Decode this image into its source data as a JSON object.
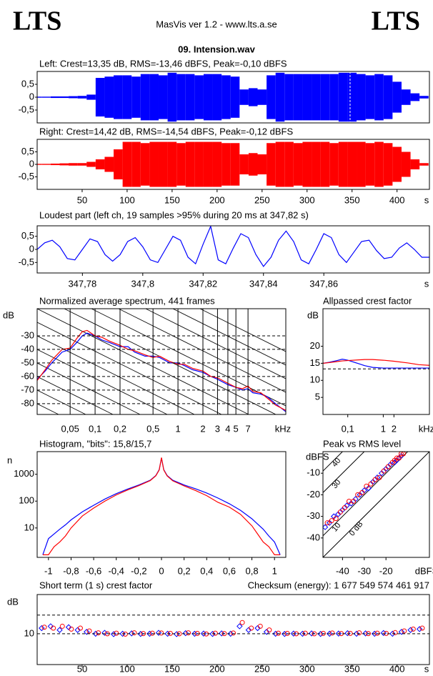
{
  "header": {
    "logo_left": "LTS",
    "logo_right": "LTS",
    "app": "MasVis ver 1.2 - www.lts.a.se",
    "file": "09. Intension.wav"
  },
  "chart_data": [
    {
      "type": "waveform",
      "title": "Left: Crest=13,35 dB, RMS=-13,46 dBFS, Peak=-0,10 dBFS",
      "color": "#0000ff",
      "x": [
        0,
        10,
        20,
        30,
        40,
        50,
        60,
        70,
        80,
        90,
        100,
        110,
        120,
        130,
        140,
        150,
        160,
        170,
        180,
        190,
        200,
        210,
        220,
        230,
        240,
        250,
        260,
        270,
        280,
        290,
        300,
        310,
        320,
        330,
        340,
        350,
        360,
        370,
        380,
        390,
        400,
        410,
        420,
        430
      ],
      "values": [
        0.02,
        0.02,
        0.03,
        0.03,
        0.04,
        0.05,
        0.1,
        0.75,
        0.8,
        0.85,
        0.85,
        0.8,
        0.9,
        0.9,
        0.85,
        0.95,
        0.9,
        0.9,
        0.85,
        0.9,
        0.9,
        0.85,
        0.8,
        0.3,
        0.35,
        0.3,
        0.85,
        0.95,
        0.9,
        0.9,
        0.9,
        0.9,
        0.9,
        0.9,
        0.95,
        0.95,
        0.9,
        0.85,
        0.9,
        0.85,
        0.6,
        0.3,
        0.15,
        0.05
      ],
      "marker_x": 347.82,
      "xlim": [
        0,
        436
      ],
      "ylim": [
        -1,
        1
      ],
      "yticks": [
        {
          "value": 0.5,
          "label": "0,5"
        },
        0,
        {
          "value": -0.5,
          "label": "-0,5"
        }
      ]
    },
    {
      "type": "waveform",
      "title": "Right: Crest=14,42 dB, RMS=-14,54 dBFS, Peak=-0,12 dBFS",
      "color": "#ff0000",
      "x": [
        0,
        10,
        20,
        30,
        40,
        50,
        60,
        70,
        80,
        90,
        100,
        110,
        120,
        130,
        140,
        150,
        160,
        170,
        180,
        190,
        200,
        210,
        220,
        230,
        240,
        250,
        260,
        270,
        280,
        290,
        300,
        310,
        320,
        330,
        340,
        350,
        360,
        370,
        380,
        390,
        400,
        410,
        420,
        430
      ],
      "values": [
        0.02,
        0.02,
        0.03,
        0.04,
        0.05,
        0.05,
        0.1,
        0.2,
        0.3,
        0.6,
        0.9,
        0.9,
        0.85,
        0.9,
        0.9,
        0.9,
        0.85,
        0.9,
        0.9,
        0.9,
        0.9,
        0.85,
        0.85,
        0.4,
        0.45,
        0.4,
        0.85,
        0.9,
        0.9,
        0.85,
        0.9,
        0.9,
        0.9,
        0.85,
        0.9,
        0.9,
        0.9,
        0.85,
        0.9,
        0.85,
        0.7,
        0.5,
        0.2,
        0.05
      ],
      "xlim": [
        0,
        436
      ],
      "ylim": [
        -1,
        1
      ],
      "yticks": [
        {
          "value": 0.5,
          "label": "0,5"
        },
        0,
        {
          "value": -0.5,
          "label": "-0,5"
        }
      ],
      "xticks": [
        50,
        100,
        150,
        200,
        250,
        300,
        350,
        400
      ],
      "xlabel": "s"
    },
    {
      "type": "line",
      "title": "Loudest part (left  ch, 19 samples >95% during 20 ms at 347,82 s)",
      "x": [
        347.765,
        347.7675,
        347.77,
        347.7725,
        347.775,
        347.7775,
        347.78,
        347.7825,
        347.785,
        347.7875,
        347.79,
        347.7925,
        347.795,
        347.7975,
        347.8,
        347.8025,
        347.805,
        347.8075,
        347.81,
        347.8125,
        347.815,
        347.8175,
        347.82,
        347.8225,
        347.825,
        347.8275,
        347.83,
        347.8325,
        347.835,
        347.8375,
        347.84,
        347.8425,
        347.845,
        347.8475,
        347.85,
        347.8525,
        347.855,
        347.8575,
        347.86,
        347.8625,
        347.865,
        347.8675,
        347.87,
        347.8725,
        347.875,
        347.8775,
        347.88,
        347.8825,
        347.885,
        347.8875,
        347.89,
        347.8925,
        347.895
      ],
      "series": [
        {
          "color": "#0000ff",
          "values": [
            0,
            0.25,
            0.35,
            0.1,
            -0.35,
            -0.4,
            0,
            0.4,
            0.3,
            -0.2,
            -0.45,
            -0.2,
            0.3,
            0.45,
            0.1,
            -0.4,
            -0.5,
            0,
            0.5,
            0.35,
            -0.3,
            -0.55,
            0.2,
            0.88,
            -0.4,
            -0.55,
            0.05,
            0.6,
            0.45,
            -0.2,
            -0.65,
            -0.3,
            0.35,
            0.7,
            0.3,
            -0.4,
            -0.55,
            0,
            0.6,
            0.45,
            -0.2,
            -0.5,
            -0.1,
            0.3,
            0.35,
            -0.05,
            -0.35,
            -0.3,
            0.05,
            0.25,
            0,
            -0.3,
            -0.3
          ]
        }
      ],
      "xlim": [
        347.765,
        347.895
      ],
      "ylim": [
        -0.9,
        0.9
      ],
      "yticks": [
        {
          "value": 0.5,
          "label": "0,5"
        },
        0,
        {
          "value": -0.5,
          "label": "-0,5"
        }
      ],
      "xticks": [
        {
          "value": 347.78,
          "label": "347,78"
        },
        {
          "value": 347.8,
          "label": "347,8"
        },
        {
          "value": 347.82,
          "label": "347,82"
        },
        {
          "value": 347.84,
          "label": "347,84"
        },
        {
          "value": 347.86,
          "label": "347,86"
        }
      ],
      "xlabel": "s"
    },
    {
      "type": "line",
      "title": "Normalized average spectrum, 441 frames",
      "ylabel": "dB",
      "xlabel": "kHz",
      "log_x": true,
      "grid": true,
      "slope_lines": true,
      "x": [
        0.02,
        0.025,
        0.03,
        0.04,
        0.05,
        0.06,
        0.07,
        0.08,
        0.1,
        0.12,
        0.15,
        0.2,
        0.25,
        0.3,
        0.4,
        0.5,
        0.6,
        0.8,
        1,
        1.2,
        1.5,
        2,
        2.5,
        3,
        4,
        5,
        6,
        7,
        8,
        10,
        12,
        15,
        20
      ],
      "series": [
        {
          "color": "#0000ff",
          "values": [
            -62,
            -56,
            -50,
            -42,
            -40,
            -35,
            -30,
            -28,
            -30,
            -33,
            -35,
            -38,
            -38,
            -42,
            -45,
            -45,
            -46,
            -50,
            -50,
            -52,
            -55,
            -57,
            -60,
            -62,
            -66,
            -68,
            -70,
            -69,
            -72,
            -73,
            -75,
            -80,
            -86
          ]
        },
        {
          "color": "#ff0000",
          "values": [
            -63,
            -55,
            -48,
            -40,
            -39,
            -32,
            -27,
            -26,
            -30,
            -31,
            -34,
            -37,
            -40,
            -41,
            -44,
            -46,
            -45,
            -49,
            -51,
            -51,
            -54,
            -56,
            -60,
            -61,
            -65,
            -68,
            -69,
            -67,
            -71,
            -72,
            -76,
            -81,
            -85
          ]
        }
      ],
      "xlim": [
        0.02,
        20
      ],
      "ylim": [
        -88,
        -10
      ],
      "yticks": [
        -30,
        -40,
        -50,
        -60,
        -70,
        -80
      ],
      "xticks": [
        {
          "value": 0.05,
          "label": "0,05"
        },
        {
          "value": 0.1,
          "label": "0,1"
        },
        {
          "value": 0.2,
          "label": "0,2"
        },
        {
          "value": 0.5,
          "label": "0,5"
        },
        1,
        2,
        3,
        4,
        5,
        7
      ]
    },
    {
      "type": "line",
      "title": "Allpassed crest factor",
      "ylabel": "dB",
      "xlabel": "kHz",
      "log_x": true,
      "reference": 13.35,
      "x": [
        0.02,
        0.03,
        0.05,
        0.07,
        0.1,
        0.2,
        0.3,
        0.5,
        1,
        2,
        5,
        10,
        20
      ],
      "series": [
        {
          "color": "#0000ff",
          "values": [
            15,
            15.3,
            15.8,
            16.2,
            15.9,
            14.9,
            14.3,
            13.8,
            13.6,
            13.6,
            13.6,
            13.6,
            13.6
          ]
        },
        {
          "color": "#ff0000",
          "values": [
            15,
            15.2,
            15.5,
            15.7,
            15.8,
            16,
            16.1,
            16.1,
            15.9,
            15.6,
            15.1,
            14.6,
            14.4
          ]
        }
      ],
      "xlim": [
        0.02,
        20
      ],
      "ylim": [
        0,
        31
      ],
      "yticks": [
        20,
        15,
        10,
        5
      ],
      "xticks": [
        {
          "value": 0.1,
          "label": "0,1"
        },
        1,
        2
      ]
    },
    {
      "type": "line",
      "title": "Histogram, \"bits\": 15,8/15,7",
      "ylabel": "n",
      "log_y": true,
      "x": [
        -1.05,
        -1,
        -0.95,
        -0.9,
        -0.85,
        -0.8,
        -0.7,
        -0.6,
        -0.5,
        -0.4,
        -0.3,
        -0.2,
        -0.1,
        -0.05,
        -0.02,
        0,
        0.02,
        0.05,
        0.1,
        0.2,
        0.3,
        0.4,
        0.5,
        0.6,
        0.7,
        0.8,
        0.85,
        0.9,
        0.95,
        1,
        1.05
      ],
      "series": [
        {
          "color": "#0000ff",
          "values": [
            1,
            4,
            6,
            9,
            13,
            20,
            40,
            70,
            120,
            190,
            280,
            400,
            600,
            900,
            1500,
            4000,
            1500,
            900,
            600,
            400,
            290,
            200,
            130,
            80,
            45,
            22,
            14,
            9,
            5,
            3,
            1
          ]
        },
        {
          "color": "#ff0000",
          "values": [
            1,
            1,
            2,
            3,
            5,
            10,
            28,
            55,
            100,
            170,
            260,
            380,
            580,
            880,
            1450,
            4200,
            1450,
            870,
            570,
            370,
            250,
            160,
            90,
            60,
            32,
            12,
            6,
            3,
            2,
            1,
            1
          ]
        }
      ],
      "xlim": [
        -1.1,
        1.1
      ],
      "ylim": [
        0.8,
        7000
      ],
      "yticks": [
        10,
        100,
        1000
      ],
      "xticks": [
        -1,
        {
          "value": -0.8,
          "label": "-0,8"
        },
        {
          "value": -0.6,
          "label": "-0,6"
        },
        {
          "value": -0.4,
          "label": "-0,4"
        },
        {
          "value": -0.2,
          "label": "-0,2"
        },
        0,
        {
          "value": 0.2,
          "label": "0,2"
        },
        {
          "value": 0.4,
          "label": "0,4"
        },
        {
          "value": 0.6,
          "label": "0,6"
        },
        {
          "value": 0.8,
          "label": "0,8"
        },
        1
      ]
    },
    {
      "type": "scatter",
      "title": "Peak vs RMS level",
      "ylabel": "dBFS",
      "xlabel": "dBFS",
      "crest_lines": [
        {
          "value": 0,
          "label": "0 dB"
        },
        10,
        30,
        40
      ],
      "series": [
        {
          "color": "#0000ff",
          "marker": "diamond",
          "x": [
            -48,
            -46,
            -44,
            -42,
            -40,
            -38,
            -36,
            -34,
            -32,
            -30,
            -28,
            -26,
            -24,
            -22,
            -20,
            -18,
            -16,
            -15,
            -14,
            -13
          ],
          "values": [
            -35,
            -33,
            -30,
            -29,
            -27,
            -25,
            -24,
            -22,
            -20,
            -18,
            -17,
            -14,
            -12,
            -10,
            -8,
            -6,
            -5,
            -4,
            -3,
            -2
          ]
        },
        {
          "color": "#ff0000",
          "marker": "circle",
          "x": [
            -47,
            -45,
            -43,
            -41,
            -39,
            -37,
            -35,
            -33,
            -31,
            -29,
            -27,
            -25,
            -23,
            -21,
            -19,
            -17,
            -16,
            -15,
            -14,
            -13,
            -12
          ],
          "values": [
            -33,
            -32,
            -31,
            -28,
            -26,
            -23,
            -23,
            -20,
            -19,
            -16,
            -15,
            -13,
            -12,
            -9,
            -7,
            -5,
            -4,
            -3,
            -3,
            -1,
            -1
          ]
        }
      ],
      "xlim": [
        -49,
        0
      ],
      "ylim": [
        -49,
        0
      ],
      "yticks": [
        -10,
        -20,
        -30,
        -40
      ],
      "xticks": [
        -40,
        -30,
        -20
      ]
    },
    {
      "type": "scatter",
      "title": "Short term (1 s) crest factor",
      "annotation": "Checksum (energy):  1 677 549 574 461 917",
      "ylabel": "dB",
      "xlabel": "s",
      "ygrid": true,
      "reference": 20,
      "series": [
        {
          "color": "#0000ff",
          "marker": "diamond",
          "x": [
            5,
            15,
            25,
            35,
            45,
            55,
            65,
            75,
            85,
            95,
            105,
            115,
            125,
            135,
            145,
            155,
            165,
            175,
            185,
            195,
            205,
            215,
            225,
            235,
            245,
            255,
            265,
            275,
            285,
            295,
            305,
            315,
            325,
            335,
            345,
            355,
            365,
            375,
            385,
            395,
            405,
            415,
            425
          ],
          "values": [
            13,
            14,
            12,
            13.5,
            12,
            11,
            10,
            10.5,
            9.8,
            10,
            10.2,
            9.9,
            10,
            10.5,
            10,
            9.8,
            10.3,
            10,
            10.1,
            9.9,
            10.2,
            10,
            14,
            12,
            13,
            11,
            10,
            9.9,
            10.1,
            10,
            10.2,
            9.9,
            10,
            10.1,
            10.3,
            10,
            10.2,
            10,
            10.4,
            10,
            11,
            12,
            12.5
          ]
        },
        {
          "color": "#ff0000",
          "marker": "circle",
          "x": [
            8,
            18,
            28,
            38,
            48,
            58,
            68,
            78,
            88,
            98,
            108,
            118,
            128,
            138,
            148,
            158,
            168,
            178,
            188,
            198,
            208,
            218,
            228,
            238,
            248,
            258,
            268,
            278,
            288,
            298,
            308,
            318,
            328,
            338,
            348,
            358,
            368,
            378,
            388,
            398,
            408,
            418,
            428
          ],
          "values": [
            13.5,
            13,
            14,
            12.5,
            13,
            11.5,
            10.5,
            10,
            10.3,
            9.8,
            10.5,
            10.1,
            10.3,
            10.4,
            10.2,
            10,
            10.5,
            10.2,
            9.9,
            10.3,
            10.1,
            10.4,
            16,
            13,
            14,
            12,
            10.3,
            10.2,
            10,
            10.3,
            10,
            10.2,
            10.4,
            10.1,
            10.2,
            10.5,
            10.1,
            10.3,
            10.2,
            10.6,
            11.5,
            12.5,
            13
          ]
        }
      ],
      "xlim": [
        0,
        436
      ],
      "ylim": [
        -6.5,
        31
      ],
      "yticks": [
        10
      ],
      "xticks": [
        50,
        100,
        150,
        200,
        250,
        300,
        350,
        400
      ]
    }
  ]
}
